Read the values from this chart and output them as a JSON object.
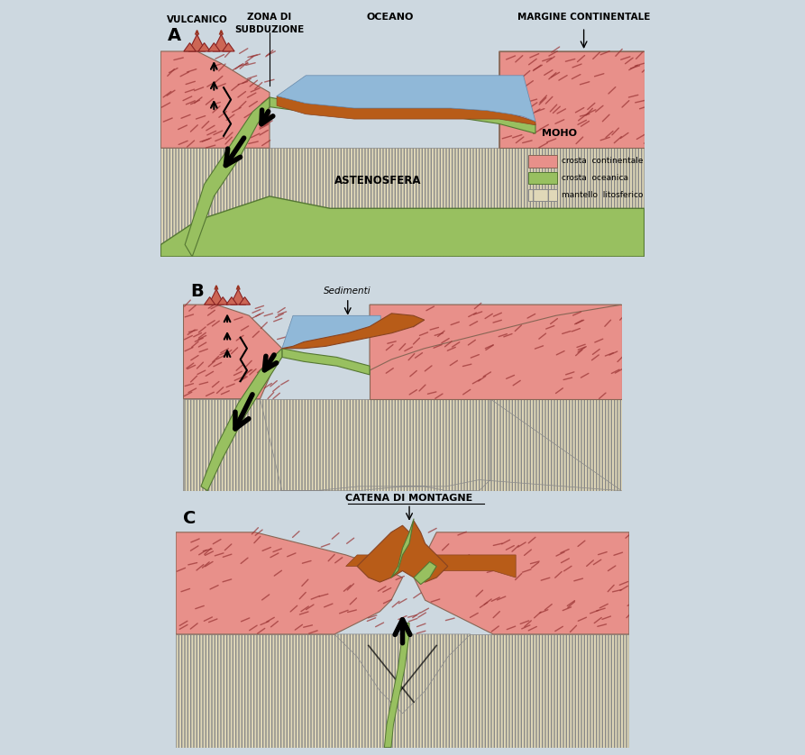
{
  "bg_color": "#cdd8e0",
  "continental_crust_color": "#e8908a",
  "oceanic_crust_color": "#98c060",
  "mantle_color": "#e0d8b8",
  "ocean_color": "#90b8d8",
  "sediment_color": "#b85c18",
  "mountain_color": "#b85c18",
  "green_remnant_color": "#98c060",
  "panel_border": "#888888",
  "title_A": "A",
  "title_B": "B",
  "title_C": "C",
  "label_vulcanico": "VULCANICO",
  "label_zona_di": "ZONA DI",
  "label_subduzione": "SUBDUZIONE",
  "label_oceano": "OCEANO",
  "label_margine": "MARGINE CONTINENTALE",
  "label_moho": "MOHO",
  "label_astenosfera": "ASTENOSFERA",
  "label_sedimenti": "Sedimenti",
  "label_catena": "CATENA DI MONTAGNE",
  "legend_continental": "crosta  continentale",
  "legend_oceanic": "crosta  oceanica",
  "legend_mantle": "mantello  litosferico"
}
